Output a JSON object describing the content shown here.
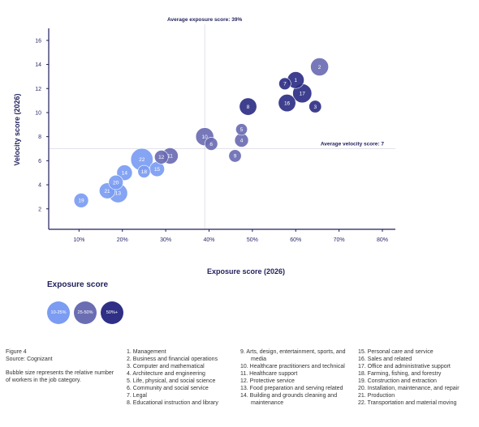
{
  "chart_data": {
    "type": "scatter",
    "xlabel": "Exposure score (2026)",
    "ylabel": "Velocity score (2026)",
    "xlim": [
      3,
      83
    ],
    "ylim": [
      0.3,
      17
    ],
    "x_ticks": [
      10,
      20,
      30,
      40,
      50,
      60,
      70,
      80
    ],
    "x_tick_labels": [
      "10%",
      "20%",
      "30%",
      "40%",
      "50%",
      "60%",
      "70%",
      "80%"
    ],
    "y_ticks": [
      2,
      4,
      6,
      8,
      10,
      12,
      14,
      16
    ],
    "y_tick_labels": [
      "2",
      "4",
      "6",
      "8",
      "10",
      "12",
      "14",
      "16"
    ],
    "grid": false,
    "reference_lines": {
      "average_exposure": {
        "x": 39,
        "label": "Average exposure score: 39%"
      },
      "average_velocity": {
        "y": 7,
        "label": "Average velocity score: 7"
      }
    },
    "points": [
      {
        "id": "1",
        "x": 60,
        "y": 12.7,
        "size": 2.2,
        "group": "50%+"
      },
      {
        "id": "2",
        "x": 65.5,
        "y": 13.8,
        "size": 2.6,
        "group": "25-50%"
      },
      {
        "id": "3",
        "x": 64.5,
        "y": 10.5,
        "size": 1.0,
        "group": "50%+"
      },
      {
        "id": "4",
        "x": 47.5,
        "y": 7.7,
        "size": 1.3,
        "group": "25-50%"
      },
      {
        "id": "5",
        "x": 47.5,
        "y": 8.6,
        "size": 0.8,
        "group": "25-50%"
      },
      {
        "id": "6",
        "x": 40.5,
        "y": 7.4,
        "size": 1.1,
        "group": "25-50%"
      },
      {
        "id": "7",
        "x": 57.5,
        "y": 12.4,
        "size": 0.9,
        "group": "50%+"
      },
      {
        "id": "8",
        "x": 49,
        "y": 10.5,
        "size": 2.4,
        "group": "50%+"
      },
      {
        "id": "9",
        "x": 46,
        "y": 6.4,
        "size": 1.0,
        "group": "25-50%"
      },
      {
        "id": "10",
        "x": 39,
        "y": 8,
        "size": 2.6,
        "group": "25-50%"
      },
      {
        "id": "11",
        "x": 31,
        "y": 6.4,
        "size": 2.0,
        "group": "25-50%"
      },
      {
        "id": "12",
        "x": 29,
        "y": 6.3,
        "size": 1.3,
        "group": "25-50%"
      },
      {
        "id": "13",
        "x": 19,
        "y": 3.3,
        "size": 3.0,
        "group": "10-25%"
      },
      {
        "id": "14",
        "x": 20.5,
        "y": 5,
        "size": 1.8,
        "group": "10-25%"
      },
      {
        "id": "15",
        "x": 28,
        "y": 5.3,
        "size": 1.6,
        "group": "10-25%"
      },
      {
        "id": "16",
        "x": 58,
        "y": 10.8,
        "size": 2.4,
        "group": "50%+"
      },
      {
        "id": "17",
        "x": 61.5,
        "y": 11.6,
        "size": 3.0,
        "group": "50%+"
      },
      {
        "id": "18",
        "x": 25,
        "y": 5.1,
        "size": 1.0,
        "group": "10-25%"
      },
      {
        "id": "19",
        "x": 10.5,
        "y": 2.7,
        "size": 1.5,
        "group": "10-25%"
      },
      {
        "id": "20",
        "x": 18.5,
        "y": 4.2,
        "size": 1.5,
        "group": "10-25%"
      },
      {
        "id": "21",
        "x": 16.5,
        "y": 3.5,
        "size": 1.9,
        "group": "10-25%"
      },
      {
        "id": "22",
        "x": 24.5,
        "y": 6.1,
        "size": 4.4,
        "group": "10-25%"
      }
    ],
    "legend": {
      "title": "Exposure score",
      "placement": "bottom-left",
      "items": [
        {
          "label": "10-25%",
          "color": "#7b9cf2"
        },
        {
          "label": "25-50%",
          "color": "#6b6db3"
        },
        {
          "label": "50%+",
          "color": "#2f2f86"
        }
      ]
    }
  },
  "figure_label": "Figure 4",
  "source": "Source: Cognizant",
  "note": "Bubble size represents the relative number of workers in the job category.",
  "categories_col1": [
    "1. Management",
    "2. Business and financial operations",
    "3. Computer and mathematical",
    "4. Architecture and engineering",
    "5. Life, physical, and social science",
    "6. Community and social service",
    "7. Legal",
    "8. Educational instruction and library"
  ],
  "categories_col2": [
    "9. Arts, design, entertainment, sports, and media",
    "10. Healthcare practitioners and technical",
    "11. Healthcare support",
    "12. Protective service",
    "13. Food preparation and serving related",
    "14. Building and grounds cleaning and maintenance"
  ],
  "categories_col3": [
    "15. Personal care and service",
    "16. Sales and related",
    "17. Office and administrative support",
    "18. Farming, fishing, and forestry",
    "19. Construction and extraction",
    "20. Installation, maintenance, and repair",
    "21. Production",
    "22. Transportation and material moving"
  ]
}
